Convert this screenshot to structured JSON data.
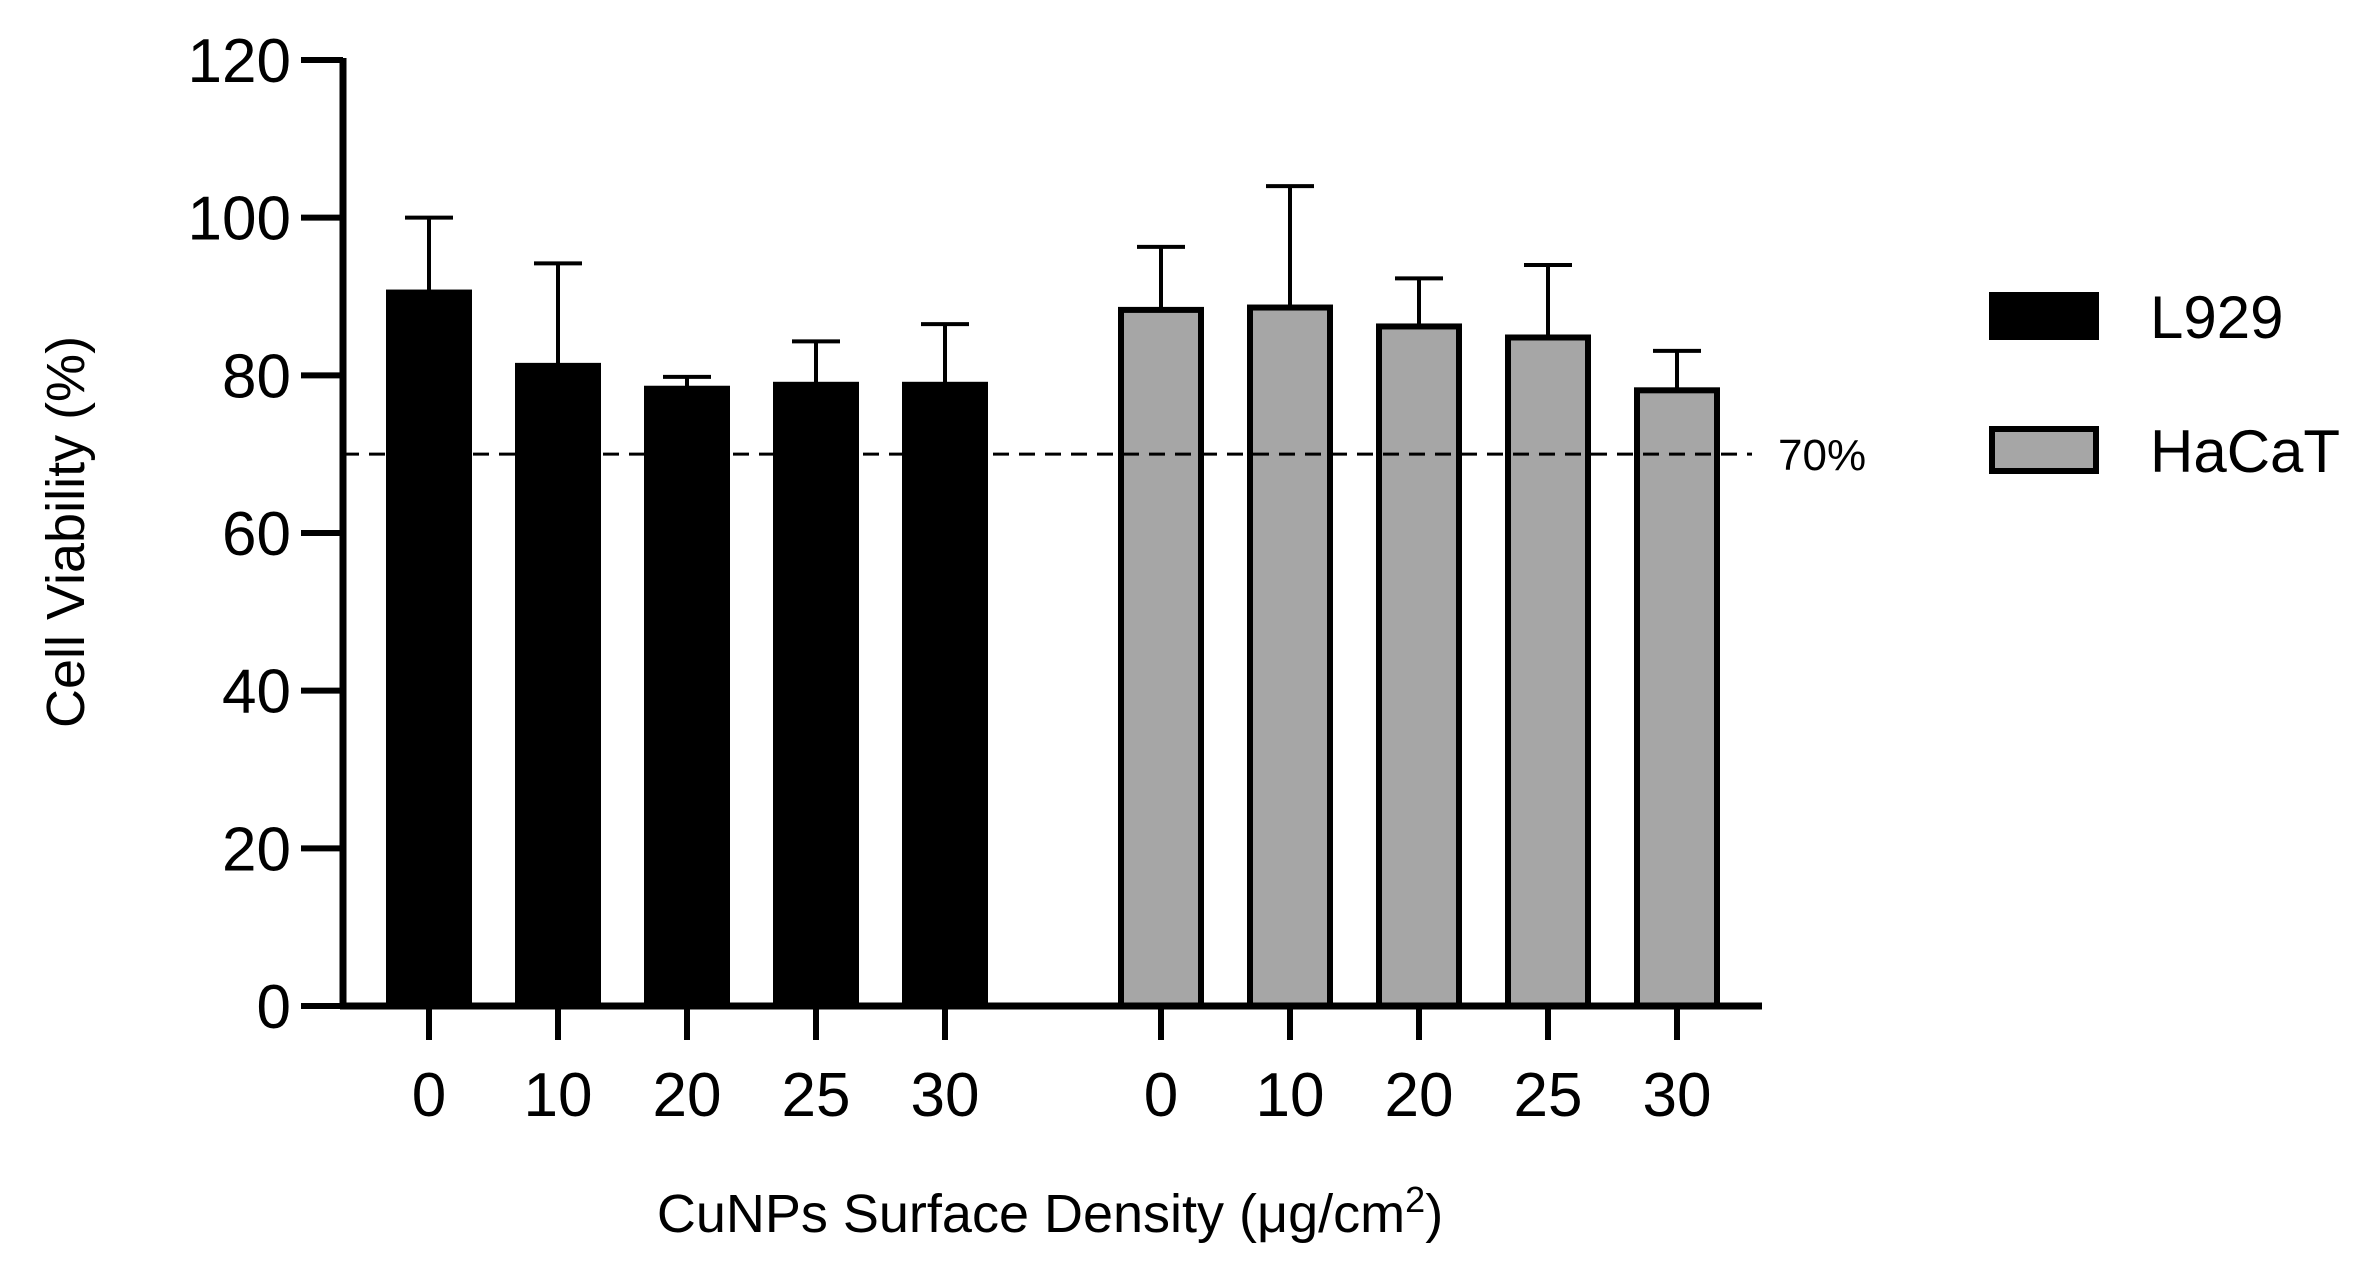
{
  "chart_data": {
    "type": "bar",
    "title": "",
    "xlabel": "CuNPs Surface Density (μg/cm",
    "xlabel_superscript": "2",
    "xlabel_suffix": ")",
    "ylabel": "Cell Viability (%)",
    "ylim": [
      0,
      120
    ],
    "yticks": [
      "0",
      "20",
      "40",
      "60",
      "80",
      "100",
      "120"
    ],
    "categories": [
      "0",
      "10",
      "20",
      "25",
      "30"
    ],
    "series": [
      {
        "name": "L929",
        "color": "#000000",
        "values": [
          90.5,
          81.2,
          78.3,
          78.8,
          78.8
        ],
        "errors": [
          9.5,
          13.0,
          1.5,
          5.5,
          7.7
        ]
      },
      {
        "name": "HaCaT",
        "color": "#a6a6a6",
        "values": [
          88.3,
          88.6,
          86.2,
          84.8,
          78.1
        ],
        "errors": [
          8.0,
          15.4,
          6.1,
          9.2,
          5.0
        ]
      }
    ],
    "reference_line": {
      "value": 70,
      "label": "70%"
    },
    "legend": {
      "position": "right"
    },
    "grid": false
  }
}
